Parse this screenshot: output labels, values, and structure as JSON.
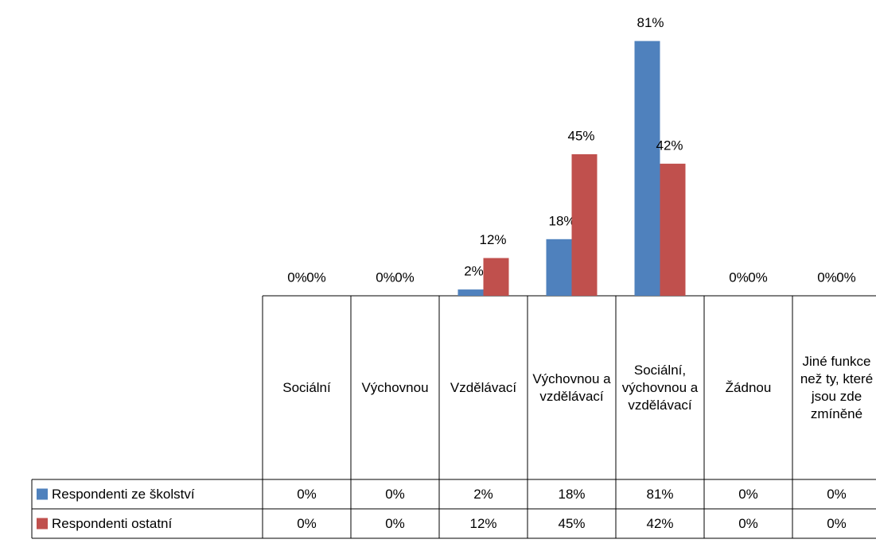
{
  "chart_data": {
    "type": "bar",
    "categories": [
      "Sociální",
      "Výchovnou",
      "Vzdělávací",
      "Výchovnou a vzdělávací",
      "Sociální, výchovnou a vzdělávací",
      "Žádnou",
      "Jiné funkce než ty, které jsou zde zmíněné"
    ],
    "series": [
      {
        "name": "Respondenti ze školství",
        "color": "#4f81bd",
        "values": [
          0,
          0,
          2,
          18,
          81,
          0,
          0
        ],
        "value_labels": [
          "0%",
          "0%",
          "2%",
          "18%",
          "81%",
          "0%",
          "0%"
        ]
      },
      {
        "name": "Respondenti ostatní",
        "color": "#c0504d",
        "values": [
          0,
          0,
          12,
          45,
          42,
          0,
          0
        ],
        "value_labels": [
          "0%",
          "0%",
          "12%",
          "45%",
          "42%",
          "0%",
          "0%"
        ]
      }
    ],
    "ylim": [
      0,
      90
    ]
  }
}
